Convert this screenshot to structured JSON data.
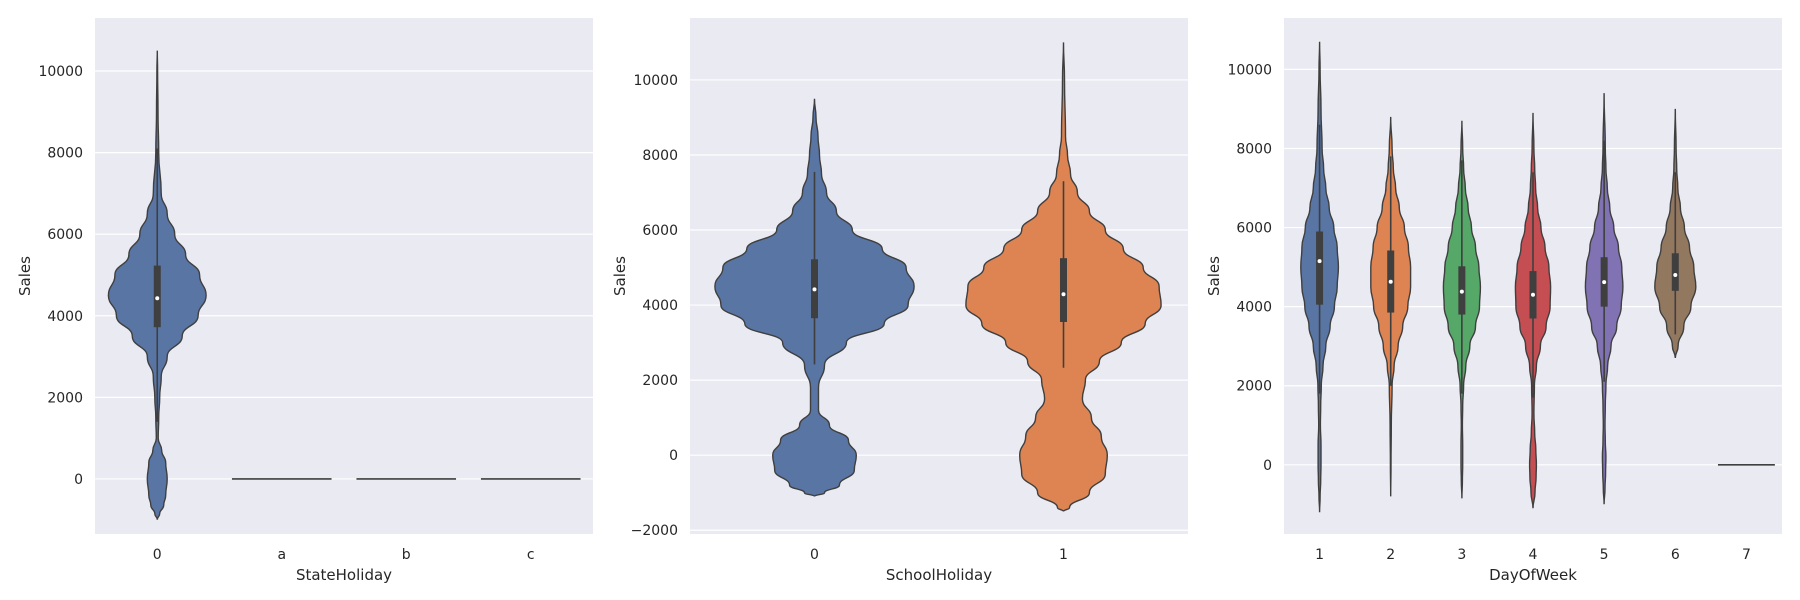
{
  "chart_data": [
    {
      "type": "violin",
      "xlabel": "StateHoliday",
      "ylabel": "Sales",
      "ylim": [
        -1350,
        11300
      ],
      "yticks": [
        0,
        2000,
        4000,
        6000,
        8000,
        10000
      ],
      "grid": true,
      "categories": [
        "0",
        "a",
        "b",
        "c"
      ],
      "violins": [
        {
          "category": "0",
          "color": "#5875a4",
          "profile": [
            [
              -1000,
              0
            ],
            [
              -850,
              0.05
            ],
            [
              -650,
              0.13
            ],
            [
              -400,
              0.17
            ],
            [
              0,
              0.2
            ],
            [
              400,
              0.17
            ],
            [
              700,
              0.09
            ],
            [
              1000,
              0.02
            ],
            [
              1500,
              0.03
            ],
            [
              2000,
              0.05
            ],
            [
              2500,
              0.08
            ],
            [
              3000,
              0.2
            ],
            [
              3500,
              0.5
            ],
            [
              4000,
              0.82
            ],
            [
              4500,
              0.98
            ],
            [
              5000,
              0.85
            ],
            [
              5500,
              0.57
            ],
            [
              6000,
              0.35
            ],
            [
              6500,
              0.2
            ],
            [
              7000,
              0.08
            ],
            [
              8000,
              0.03
            ],
            [
              9000,
              0.015
            ],
            [
              10000,
              0.008
            ],
            [
              10500,
              0
            ]
          ],
          "box": {
            "q1": 3720,
            "median": 4430,
            "q3": 5230,
            "whisker_low": 1400,
            "whisker_high": 8100
          }
        },
        {
          "category": "a",
          "color": "#dd8452",
          "constant": 0
        },
        {
          "category": "b",
          "color": "#55a868",
          "constant": 0
        },
        {
          "category": "c",
          "color": "#c44e52",
          "constant": 0
        }
      ]
    },
    {
      "type": "violin",
      "xlabel": "SchoolHoliday",
      "ylabel": "Sales",
      "ylim": [
        -2100,
        11650
      ],
      "yticks": [
        -2000,
        0,
        2000,
        4000,
        6000,
        8000,
        10000
      ],
      "grid": true,
      "categories": [
        "0",
        "1"
      ],
      "violins": [
        {
          "category": "0",
          "color": "#5875a4",
          "profile": [
            [
              -1100,
              0
            ],
            [
              -1000,
              0.1
            ],
            [
              -800,
              0.25
            ],
            [
              -400,
              0.4
            ],
            [
              0,
              0.42
            ],
            [
              400,
              0.34
            ],
            [
              800,
              0.15
            ],
            [
              1200,
              0.04
            ],
            [
              1800,
              0.04
            ],
            [
              2400,
              0.1
            ],
            [
              3000,
              0.32
            ],
            [
              3500,
              0.7
            ],
            [
              4000,
              0.94
            ],
            [
              4500,
              1.0
            ],
            [
              5000,
              0.92
            ],
            [
              5500,
              0.68
            ],
            [
              6000,
              0.38
            ],
            [
              6500,
              0.22
            ],
            [
              7000,
              0.12
            ],
            [
              7500,
              0.07
            ],
            [
              8000,
              0.05
            ],
            [
              8500,
              0.035
            ],
            [
              9000,
              0.015
            ],
            [
              9500,
              0
            ]
          ],
          "box": {
            "q1": 3650,
            "median": 4420,
            "q3": 5220,
            "whisker_low": 2420,
            "whisker_high": 7550
          }
        },
        {
          "category": "1",
          "color": "#dd8452",
          "profile": [
            [
              -1500,
              0
            ],
            [
              -1400,
              0.06
            ],
            [
              -1000,
              0.26
            ],
            [
              -500,
              0.42
            ],
            [
              0,
              0.44
            ],
            [
              500,
              0.38
            ],
            [
              1000,
              0.28
            ],
            [
              1500,
              0.19
            ],
            [
              2000,
              0.22
            ],
            [
              2500,
              0.36
            ],
            [
              3000,
              0.58
            ],
            [
              3500,
              0.82
            ],
            [
              4000,
              0.98
            ],
            [
              4500,
              0.96
            ],
            [
              5000,
              0.8
            ],
            [
              5500,
              0.6
            ],
            [
              6000,
              0.42
            ],
            [
              6500,
              0.26
            ],
            [
              7000,
              0.14
            ],
            [
              7500,
              0.07
            ],
            [
              8000,
              0.04
            ],
            [
              8500,
              0.02
            ],
            [
              10000,
              0.01
            ],
            [
              11000,
              0
            ]
          ],
          "box": {
            "q1": 3550,
            "median": 4290,
            "q3": 5250,
            "whisker_low": 2330,
            "whisker_high": 7300
          }
        }
      ]
    },
    {
      "type": "violin",
      "xlabel": "DayOfWeek",
      "ylabel": "Sales",
      "ylim": [
        -1750,
        11300
      ],
      "yticks": [
        0,
        2000,
        4000,
        6000,
        8000,
        10000
      ],
      "grid": true,
      "categories": [
        "1",
        "2",
        "3",
        "4",
        "5",
        "6",
        "7"
      ],
      "violins": [
        {
          "category": "1",
          "color": "#5875a4",
          "profile": [
            [
              -1200,
              0
            ],
            [
              -800,
              0.02
            ],
            [
              -400,
              0.04
            ],
            [
              0,
              0.05
            ],
            [
              500,
              0.05
            ],
            [
              1000,
              0.03
            ],
            [
              1500,
              0.04
            ],
            [
              2000,
              0.06
            ],
            [
              2500,
              0.12
            ],
            [
              3000,
              0.22
            ],
            [
              3500,
              0.37
            ],
            [
              4000,
              0.52
            ],
            [
              4500,
              0.62
            ],
            [
              5000,
              0.66
            ],
            [
              5500,
              0.62
            ],
            [
              6000,
              0.5
            ],
            [
              6500,
              0.34
            ],
            [
              7000,
              0.22
            ],
            [
              7500,
              0.14
            ],
            [
              8000,
              0.09
            ],
            [
              9000,
              0.05
            ],
            [
              10000,
              0.02
            ],
            [
              10700,
              0
            ]
          ],
          "box": {
            "q1": 4050,
            "median": 5150,
            "q3": 5900,
            "whisker_low": 1800,
            "whisker_high": 8600
          }
        },
        {
          "category": "2",
          "color": "#dd8452",
          "profile": [
            [
              -800,
              0
            ],
            [
              0,
              0.01
            ],
            [
              1000,
              0.02
            ],
            [
              2000,
              0.05
            ],
            [
              2500,
              0.12
            ],
            [
              3000,
              0.26
            ],
            [
              3500,
              0.42
            ],
            [
              4000,
              0.6
            ],
            [
              4500,
              0.7
            ],
            [
              5000,
              0.7
            ],
            [
              5500,
              0.62
            ],
            [
              6000,
              0.48
            ],
            [
              6500,
              0.3
            ],
            [
              7000,
              0.17
            ],
            [
              7500,
              0.09
            ],
            [
              8000,
              0.05
            ],
            [
              8800,
              0
            ]
          ],
          "box": {
            "q1": 3850,
            "median": 4630,
            "q3": 5420,
            "whisker_low": 2000,
            "whisker_high": 7800
          }
        },
        {
          "category": "3",
          "color": "#55a868",
          "profile": [
            [
              -850,
              0
            ],
            [
              -400,
              0.02
            ],
            [
              0,
              0.03
            ],
            [
              500,
              0.03
            ],
            [
              1000,
              0.02
            ],
            [
              1500,
              0.03
            ],
            [
              2000,
              0.06
            ],
            [
              2500,
              0.14
            ],
            [
              3000,
              0.28
            ],
            [
              3500,
              0.48
            ],
            [
              4000,
              0.62
            ],
            [
              4500,
              0.65
            ],
            [
              5000,
              0.6
            ],
            [
              5500,
              0.48
            ],
            [
              6000,
              0.34
            ],
            [
              6500,
              0.22
            ],
            [
              7000,
              0.12
            ],
            [
              7500,
              0.06
            ],
            [
              8000,
              0.03
            ],
            [
              8700,
              0
            ]
          ],
          "box": {
            "q1": 3800,
            "median": 4380,
            "q3": 5020,
            "whisker_low": 1800,
            "whisker_high": 7700
          }
        },
        {
          "category": "4",
          "color": "#c44e52",
          "profile": [
            [
              -1100,
              0
            ],
            [
              -700,
              0.07
            ],
            [
              -300,
              0.11
            ],
            [
              0,
              0.12
            ],
            [
              400,
              0.1
            ],
            [
              800,
              0.06
            ],
            [
              1300,
              0.03
            ],
            [
              2000,
              0.05
            ],
            [
              2500,
              0.12
            ],
            [
              3000,
              0.26
            ],
            [
              3500,
              0.46
            ],
            [
              4000,
              0.6
            ],
            [
              4500,
              0.62
            ],
            [
              5000,
              0.56
            ],
            [
              5500,
              0.42
            ],
            [
              6000,
              0.28
            ],
            [
              6500,
              0.16
            ],
            [
              7000,
              0.09
            ],
            [
              7500,
              0.06
            ],
            [
              8000,
              0.03
            ],
            [
              8900,
              0
            ]
          ],
          "box": {
            "q1": 3700,
            "median": 4300,
            "q3": 4900,
            "whisker_low": 1700,
            "whisker_high": 7400
          }
        },
        {
          "category": "5",
          "color": "#8172b3",
          "profile": [
            [
              -1000,
              0
            ],
            [
              -600,
              0.03
            ],
            [
              -200,
              0.05
            ],
            [
              200,
              0.06
            ],
            [
              600,
              0.04
            ],
            [
              1000,
              0.03
            ],
            [
              1500,
              0.04
            ],
            [
              2000,
              0.06
            ],
            [
              2500,
              0.12
            ],
            [
              3000,
              0.24
            ],
            [
              3500,
              0.44
            ],
            [
              4000,
              0.6
            ],
            [
              4500,
              0.66
            ],
            [
              5000,
              0.62
            ],
            [
              5500,
              0.5
            ],
            [
              6000,
              0.34
            ],
            [
              6500,
              0.2
            ],
            [
              7000,
              0.11
            ],
            [
              7500,
              0.06
            ],
            [
              8000,
              0.04
            ],
            [
              9400,
              0
            ]
          ],
          "box": {
            "q1": 4000,
            "median": 4620,
            "q3": 5250,
            "whisker_low": 2100,
            "whisker_high": 8200
          }
        },
        {
          "category": "6",
          "color": "#937860",
          "profile": [
            [
              2700,
              0
            ],
            [
              3000,
              0.1
            ],
            [
              3500,
              0.3
            ],
            [
              4000,
              0.55
            ],
            [
              4500,
              0.72
            ],
            [
              5000,
              0.65
            ],
            [
              5500,
              0.5
            ],
            [
              6000,
              0.32
            ],
            [
              6500,
              0.18
            ],
            [
              7000,
              0.09
            ],
            [
              7500,
              0.05
            ],
            [
              8000,
              0.03
            ],
            [
              9000,
              0
            ]
          ],
          "box": {
            "q1": 4400,
            "median": 4800,
            "q3": 5350,
            "whisker_low": 3300,
            "whisker_high": 7400
          }
        },
        {
          "category": "7",
          "color": "#da8bc3",
          "constant": 0
        }
      ]
    }
  ]
}
